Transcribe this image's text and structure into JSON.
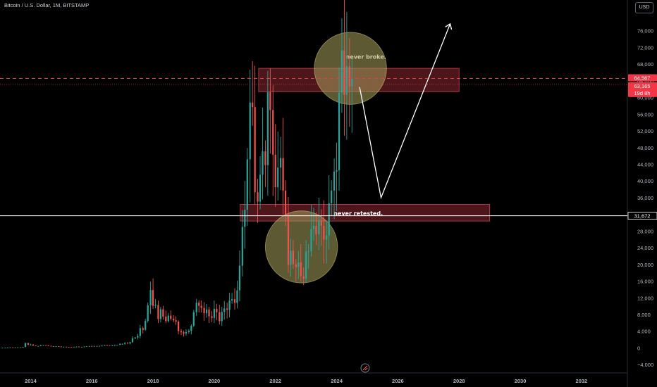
{
  "header": {
    "title": "Bitcoin / U.S. Dollar, 1M, BITSTAMP"
  },
  "currency_button": "USD",
  "colors": {
    "up": "#26a69a",
    "down": "#ef5350",
    "zone_fill": "#6b1e26",
    "zone_stroke": "#c2414f",
    "circle_fill": "#a8a25c",
    "current_price": "#f23645"
  },
  "chart_data": {
    "type": "candlestick",
    "title": "Bitcoin / U.S. Dollar, 1M, BITSTAMP",
    "xlim": [
      2013.0,
      2033.5
    ],
    "ylim": [
      -6000,
      80000
    ],
    "x_ticks": [
      2014,
      2016,
      2018,
      2020,
      2022,
      2024,
      2026,
      2028,
      2030,
      2032
    ],
    "y_ticks": [
      -4000,
      0,
      4000,
      8000,
      12000,
      16000,
      20000,
      24000,
      28000,
      32000,
      36000,
      40000,
      44000,
      48000,
      52000,
      56000,
      60000,
      64000,
      68000,
      72000,
      76000
    ],
    "y_tick_labels": [
      "−4,000",
      "0",
      "4,000",
      "8,000",
      "12,000",
      "16,000",
      "20,000",
      "24,000",
      "28,000",
      "32,000",
      "36,000",
      "40,000",
      "44,000",
      "48,000",
      "52,000",
      "56,000",
      "60,000",
      "64,000",
      "68,000",
      "72,000",
      "76,000"
    ],
    "closes": [
      [
        2013.08,
        20
      ],
      [
        2013.17,
        34
      ],
      [
        2013.25,
        93
      ],
      [
        2013.33,
        128
      ],
      [
        2013.42,
        97
      ],
      [
        2013.5,
        106
      ],
      [
        2013.58,
        135
      ],
      [
        2013.67,
        141
      ],
      [
        2013.75,
        204
      ],
      [
        2013.83,
        1130
      ],
      [
        2013.92,
        732
      ],
      [
        2014.0,
        806
      ],
      [
        2014.08,
        550
      ],
      [
        2014.17,
        448
      ],
      [
        2014.25,
        448
      ],
      [
        2014.33,
        628
      ],
      [
        2014.42,
        640
      ],
      [
        2014.5,
        586
      ],
      [
        2014.58,
        478
      ],
      [
        2014.67,
        386
      ],
      [
        2014.75,
        338
      ],
      [
        2014.83,
        376
      ],
      [
        2014.92,
        320
      ],
      [
        2015.0,
        217
      ],
      [
        2015.08,
        254
      ],
      [
        2015.17,
        244
      ],
      [
        2015.25,
        236
      ],
      [
        2015.33,
        230
      ],
      [
        2015.42,
        263
      ],
      [
        2015.5,
        285
      ],
      [
        2015.58,
        230
      ],
      [
        2015.67,
        236
      ],
      [
        2015.75,
        313
      ],
      [
        2015.83,
        377
      ],
      [
        2015.92,
        430
      ],
      [
        2016.0,
        368
      ],
      [
        2016.08,
        437
      ],
      [
        2016.17,
        416
      ],
      [
        2016.25,
        448
      ],
      [
        2016.33,
        531
      ],
      [
        2016.42,
        673
      ],
      [
        2016.5,
        624
      ],
      [
        2016.58,
        575
      ],
      [
        2016.67,
        609
      ],
      [
        2016.75,
        698
      ],
      [
        2016.83,
        742
      ],
      [
        2016.92,
        963
      ],
      [
        2017.0,
        970
      ],
      [
        2017.08,
        1190
      ],
      [
        2017.17,
        1079
      ],
      [
        2017.25,
        1350
      ],
      [
        2017.33,
        2300
      ],
      [
        2017.42,
        2480
      ],
      [
        2017.5,
        2875
      ],
      [
        2017.58,
        4720
      ],
      [
        2017.67,
        4340
      ],
      [
        2017.75,
        6450
      ],
      [
        2017.83,
        10200
      ],
      [
        2017.92,
        13850
      ],
      [
        2018.0,
        10100
      ],
      [
        2018.08,
        10300
      ],
      [
        2018.17,
        6900
      ],
      [
        2018.25,
        9250
      ],
      [
        2018.33,
        7500
      ],
      [
        2018.42,
        6400
      ],
      [
        2018.5,
        7730
      ],
      [
        2018.58,
        7000
      ],
      [
        2018.67,
        6620
      ],
      [
        2018.75,
        6300
      ],
      [
        2018.83,
        4020
      ],
      [
        2018.92,
        3740
      ],
      [
        2019.0,
        3460
      ],
      [
        2019.08,
        3810
      ],
      [
        2019.17,
        4100
      ],
      [
        2019.25,
        5320
      ],
      [
        2019.33,
        8560
      ],
      [
        2019.42,
        10820
      ],
      [
        2019.5,
        10080
      ],
      [
        2019.58,
        9580
      ],
      [
        2019.67,
        8290
      ],
      [
        2019.75,
        9200
      ],
      [
        2019.83,
        7570
      ],
      [
        2019.92,
        7190
      ],
      [
        2020.0,
        9350
      ],
      [
        2020.08,
        8540
      ],
      [
        2020.17,
        6410
      ],
      [
        2020.25,
        8630
      ],
      [
        2020.33,
        9450
      ],
      [
        2020.42,
        9140
      ],
      [
        2020.5,
        11340
      ],
      [
        2020.58,
        11680
      ],
      [
        2020.67,
        10780
      ],
      [
        2020.75,
        13800
      ],
      [
        2020.83,
        19700
      ],
      [
        2020.92,
        28990
      ],
      [
        2021.0,
        33100
      ],
      [
        2021.08,
        45200
      ],
      [
        2021.17,
        58800
      ],
      [
        2021.25,
        57700
      ],
      [
        2021.33,
        37300
      ],
      [
        2021.42,
        35050
      ],
      [
        2021.5,
        41500
      ],
      [
        2021.58,
        47100
      ],
      [
        2021.67,
        43800
      ],
      [
        2021.75,
        61300
      ],
      [
        2021.83,
        57000
      ],
      [
        2021.92,
        46300
      ],
      [
        2022.0,
        38500
      ],
      [
        2022.08,
        43200
      ],
      [
        2022.17,
        45500
      ],
      [
        2022.25,
        37700
      ],
      [
        2022.33,
        31800
      ],
      [
        2022.42,
        19900
      ],
      [
        2022.5,
        23300
      ],
      [
        2022.58,
        20050
      ],
      [
        2022.67,
        19400
      ],
      [
        2022.75,
        20500
      ],
      [
        2022.83,
        17150
      ],
      [
        2022.92,
        16550
      ],
      [
        2023.0,
        23100
      ],
      [
        2023.08,
        23150
      ],
      [
        2023.17,
        28500
      ],
      [
        2023.25,
        29250
      ],
      [
        2023.33,
        27200
      ],
      [
        2023.42,
        30450
      ],
      [
        2023.5,
        29250
      ],
      [
        2023.58,
        25950
      ],
      [
        2023.67,
        26950
      ],
      [
        2023.75,
        34650
      ],
      [
        2023.83,
        37700
      ],
      [
        2023.92,
        42250
      ],
      [
        2024.0,
        42550
      ],
      [
        2024.08,
        61150
      ],
      [
        2024.17,
        71300
      ],
      [
        2024.25,
        60650
      ],
      [
        2024.33,
        67500
      ],
      [
        2024.42,
        62700
      ],
      [
        2024.5,
        64500
      ]
    ],
    "horizontal_lines": [
      {
        "price": 31672,
        "label": "31,672",
        "color": "#ffffff",
        "style": "solid"
      },
      {
        "price": 64567,
        "label": "64,567",
        "color": "#f23645",
        "style": "dashed"
      },
      {
        "price": 63165,
        "label": "63,165",
        "color": "#f23645",
        "style": "dotted"
      }
    ],
    "countdown_label": "19d 8h",
    "zones": [
      {
        "x0": 2021.45,
        "x1": 2028.0,
        "y0": 61400,
        "y1": 67000,
        "label": "never broke."
      },
      {
        "x0": 2020.85,
        "x1": 2029.0,
        "y0": 30400,
        "y1": 34400,
        "label": "never retested."
      }
    ],
    "circles": [
      {
        "cx": 2024.45,
        "cy": 67000,
        "r_years": 1.18
      },
      {
        "cx": 2022.85,
        "cy": 24200,
        "r_years": 1.18
      }
    ],
    "path_arrow": [
      [
        2024.75,
        62500
      ],
      [
        2025.45,
        36000
      ],
      [
        2027.7,
        77500
      ]
    ]
  }
}
